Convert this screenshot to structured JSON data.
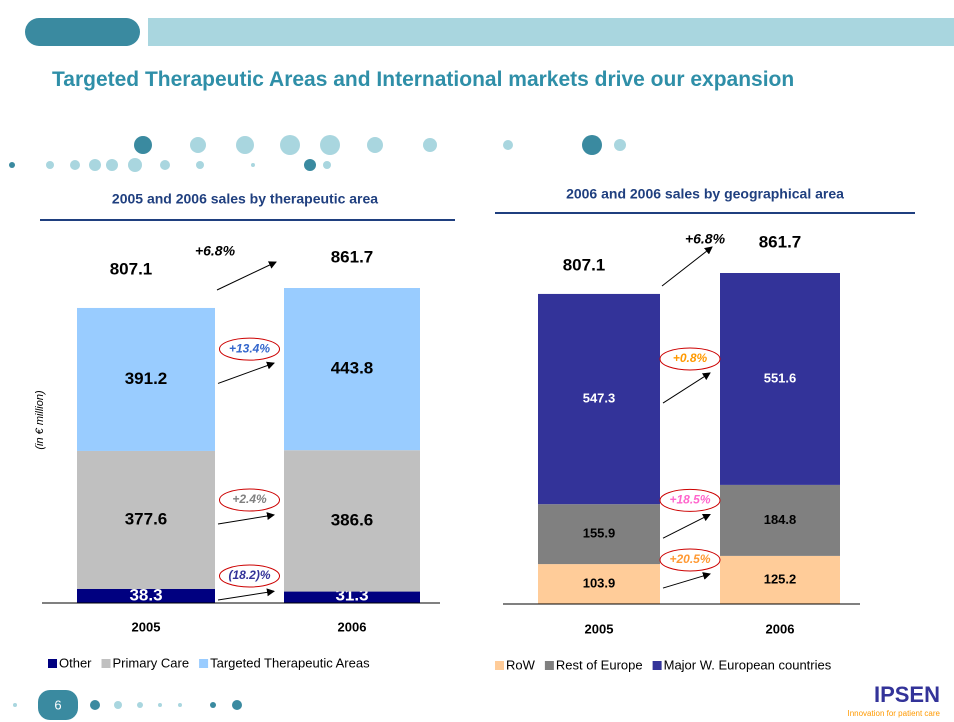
{
  "title": "Targeted Therapeutic Areas and International markets drive our expansion",
  "page_number": "6",
  "logo": {
    "name": "IPSEN",
    "tagline": "Innovation for patient care"
  },
  "chart_data": [
    {
      "type": "stacked_bar",
      "title": "2005 and 2006 sales  by therapeutic area",
      "y_label": "(in € million)",
      "categories": [
        "2005",
        "2006"
      ],
      "totals": [
        807.1,
        861.7
      ],
      "total_growth": "+6.8%",
      "series": [
        {
          "name": "Other",
          "color": "#000080",
          "label_color": "#ffffff",
          "values": [
            38.3,
            31.3
          ],
          "growth": "(18.2)%",
          "growth_color": "#333399"
        },
        {
          "name": "Primary Care",
          "color": "#c0c0c0",
          "label_color": "#000000",
          "values": [
            377.6,
            386.6
          ],
          "growth": "+2.4%",
          "growth_color": "#808080"
        },
        {
          "name": "Targeted Therapeutic Areas",
          "color": "#99ccff",
          "label_color": "#000000",
          "values": [
            391.2,
            443.8
          ],
          "growth": "+13.4%",
          "growth_color": "#3366cc"
        }
      ]
    },
    {
      "type": "stacked_bar",
      "title": "2006 and 2006 sales by geographical area",
      "categories": [
        "2005",
        "2006"
      ],
      "totals": [
        807.1,
        861.7
      ],
      "total_growth": "+6.8%",
      "series": [
        {
          "name": "RoW",
          "color": "#ffcc99",
          "label_color": "#000000",
          "values": [
            103.9,
            125.2
          ],
          "growth": "+20.5%",
          "growth_color": "#ff9933"
        },
        {
          "name": "Rest of Europe",
          "color": "#808080",
          "label_color": "#000000",
          "values": [
            155.9,
            184.8
          ],
          "growth": "+18.5%",
          "growth_color": "#ff66cc"
        },
        {
          "name": "Major W. European countries",
          "color": "#333399",
          "label_color": "#ffffff",
          "values": [
            547.3,
            551.6
          ],
          "growth": "+0.8%",
          "growth_color": "#ff9900"
        }
      ]
    }
  ]
}
